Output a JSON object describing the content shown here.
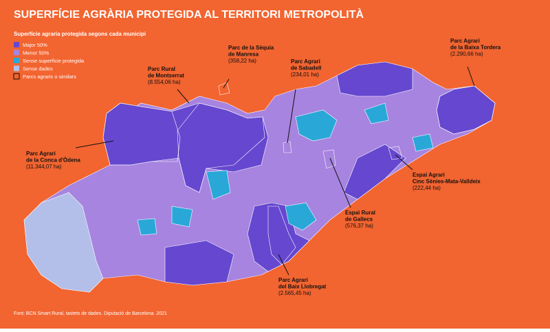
{
  "title": "SUPERFÍCIE AGRÀRIA PROTEGIDA AL TERRITORI METROPOLITÀ",
  "legend": {
    "title": "Superfície agraria protegida segons cada municipi",
    "items": [
      "Major 50%",
      "Menor 50%",
      "Sense superfície protegida",
      "Sense dades",
      "Parcs agraris o similars"
    ]
  },
  "parks": [
    {
      "name": [
        "Parc de la Sèquia",
        "de Manresa"
      ],
      "area": "(358,22 ha)"
    },
    {
      "name": [
        "Parc Agrari",
        "de Sabadell"
      ],
      "area": "(234,01 ha)"
    },
    {
      "name": [
        "Parc Agrari",
        "de la Baixa Tordera"
      ],
      "area": "(2.290,66 ha)"
    },
    {
      "name": [
        "Parc Rural",
        "de Montserrat"
      ],
      "area": "(8.554,06 ha)"
    },
    {
      "name": [
        "Parc Agrari",
        "de la Conca d'Òdena"
      ],
      "area": "(11.344,07 ha)"
    },
    {
      "name": [
        "Espai Agrari",
        "Cinc Sènies-Mata-Valldeix"
      ],
      "area": "(222,44 ha)"
    },
    {
      "name": [
        "Espai Rural",
        "de Gallecs"
      ],
      "area": "(576,37 ha)"
    },
    {
      "name": [
        "Parc Agrari",
        "del Baix Llobregat"
      ],
      "area": "(2.565,45 ha)"
    }
  ],
  "source": "Font: BCN Smart Rural, tastets de dades. Diputació de Barcelona. 2021"
}
